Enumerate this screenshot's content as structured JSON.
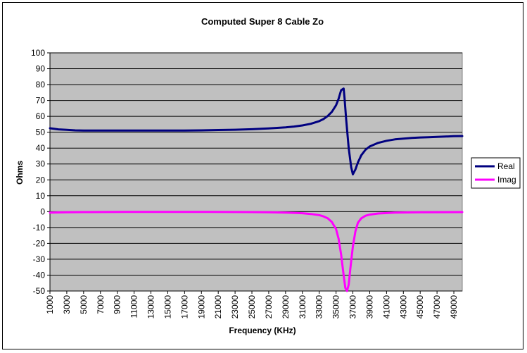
{
  "chart_data": {
    "type": "line",
    "title": "Computed Super 8 Cable Zo",
    "xlabel": "Frequency (KHz)",
    "ylabel": "Ohms",
    "ylim": [
      -50,
      100
    ],
    "xlim": [
      1000,
      50000
    ],
    "yticks": [
      100,
      90,
      80,
      70,
      60,
      50,
      40,
      30,
      20,
      10,
      0,
      -10,
      -20,
      -30,
      -40,
      -50
    ],
    "xtick_labels": [
      "1000",
      "3000",
      "5000",
      "7000",
      "9000",
      "11000",
      "13000",
      "15000",
      "17000",
      "19000",
      "21000",
      "23000",
      "25000",
      "27000",
      "29000",
      "31000",
      "33000",
      "35000",
      "37000",
      "39000",
      "41000",
      "43000",
      "45000",
      "47000",
      "49000"
    ],
    "grid": "horizontal",
    "legend_position": "right",
    "plot_background": "#C0C0C0",
    "series": [
      {
        "name": "Real",
        "color": "#000080",
        "x": [
          1000,
          2000,
          3000,
          4000,
          5000,
          7000,
          9000,
          11000,
          13000,
          15000,
          17000,
          19000,
          21000,
          23000,
          25000,
          27000,
          29000,
          30000,
          31000,
          32000,
          33000,
          33500,
          34000,
          34500,
          35000,
          35300,
          35600,
          35900,
          36000,
          36200,
          36500,
          36800,
          37000,
          37300,
          37600,
          38000,
          38500,
          39000,
          40000,
          41000,
          42000,
          43000,
          44000,
          45000,
          46000,
          47000,
          48000,
          49000,
          50000
        ],
        "values": [
          52.5,
          51.8,
          51.5,
          51.2,
          51.1,
          51.1,
          51.1,
          51.1,
          51.1,
          51.1,
          51.1,
          51.2,
          51.4,
          51.6,
          51.9,
          52.4,
          53.1,
          53.6,
          54.3,
          55.3,
          57.0,
          58.3,
          60.2,
          62.8,
          67.0,
          71.0,
          76.5,
          77.5,
          72.0,
          58.0,
          40.0,
          28.0,
          23.5,
          26.5,
          31.0,
          35.5,
          39.0,
          41.0,
          43.3,
          44.6,
          45.5,
          46.0,
          46.4,
          46.7,
          46.9,
          47.1,
          47.3,
          47.5,
          47.6
        ]
      },
      {
        "name": "Imag",
        "color": "#FF00FF",
        "x": [
          1000,
          3000,
          5000,
          10000,
          15000,
          20000,
          25000,
          27000,
          29000,
          30000,
          31000,
          32000,
          33000,
          33500,
          34000,
          34500,
          35000,
          35300,
          35600,
          35900,
          36100,
          36300,
          36500,
          36700,
          37000,
          37300,
          37600,
          38000,
          38500,
          39000,
          40000,
          41000,
          42000,
          45000,
          50000
        ],
        "values": [
          -0.6,
          -0.4,
          -0.3,
          -0.2,
          -0.2,
          -0.2,
          -0.3,
          -0.4,
          -0.6,
          -0.8,
          -1.0,
          -1.5,
          -2.2,
          -3.0,
          -4.2,
          -6.5,
          -11.0,
          -17.0,
          -27.0,
          -40.0,
          -48.0,
          -50.0,
          -46.0,
          -36.0,
          -22.0,
          -12.5,
          -7.0,
          -4.2,
          -2.6,
          -1.9,
          -1.2,
          -0.9,
          -0.6,
          -0.4,
          -0.3
        ]
      }
    ]
  }
}
